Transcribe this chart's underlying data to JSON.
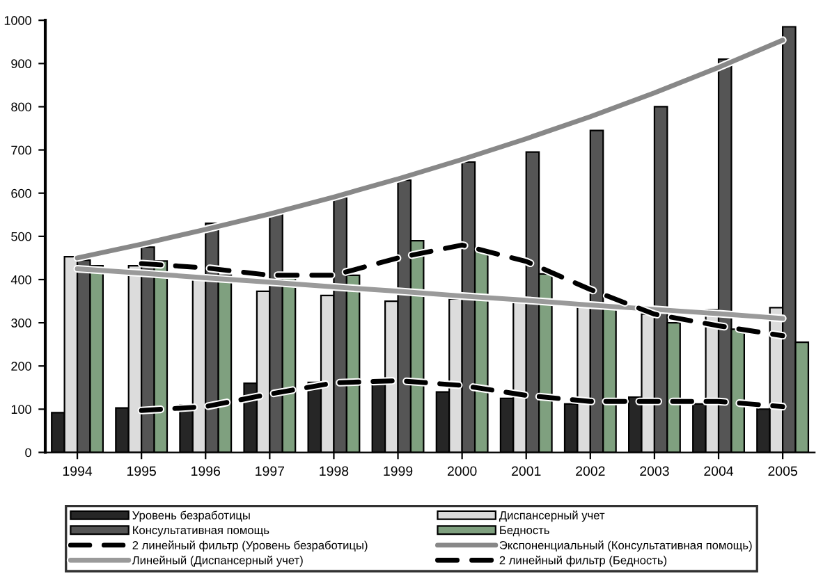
{
  "chart_data": {
    "type": "bar",
    "categories": [
      "1994",
      "1995",
      "1996",
      "1997",
      "1998",
      "1999",
      "2000",
      "2001",
      "2002",
      "2003",
      "2004",
      "2005"
    ],
    "ylim": [
      0,
      1000
    ],
    "yticks": [
      0,
      100,
      200,
      300,
      400,
      500,
      600,
      700,
      800,
      900,
      1000
    ],
    "grid": false,
    "legend": "bottom",
    "marker": "none",
    "series": [
      {
        "name": "Уровень безработицы",
        "color": "#262626",
        "values": [
          92,
          103,
          110,
          160,
          162,
          170,
          140,
          125,
          112,
          128,
          112,
          100
        ]
      },
      {
        "name": "Диспансерный учет",
        "color": "#dcdcdc",
        "values": [
          453,
          432,
          408,
          373,
          363,
          350,
          355,
          347,
          337,
          320,
          330,
          335
        ]
      },
      {
        "name": "Консультативная помощь",
        "color": "#555555",
        "values": [
          445,
          475,
          530,
          558,
          590,
          630,
          672,
          695,
          745,
          800,
          910,
          985
        ]
      },
      {
        "name": "Бедность",
        "color": "#7fa07f",
        "values": [
          432,
          443,
          410,
          410,
          410,
          490,
          470,
          413,
          340,
          300,
          285,
          255
        ]
      },
      {
        "name": "2 линейный фильтр (Уровень безработицы)",
        "type": "line",
        "line_style": "dashed",
        "color": "#000000",
        "values": [
          null,
          97,
          106,
          135,
          161,
          166,
          155,
          132,
          118,
          118,
          118,
          106
        ]
      },
      {
        "name": "Экспоненциальный (Консультативная помощь)",
        "type": "line",
        "line_style": "solid",
        "color": "#888888",
        "values": [
          450,
          482,
          516,
          552,
          591,
          633,
          678,
          726,
          777,
          832,
          891,
          954
        ]
      },
      {
        "name": "Линейный (Диспансерный учет)",
        "type": "line",
        "line_style": "solid",
        "color": "#9a9a9a",
        "values": [
          425,
          415,
          404,
          394,
          383,
          373,
          362,
          352,
          341,
          331,
          321,
          310
        ]
      },
      {
        "name": "2 линейный фильтр (Бедность)",
        "type": "line",
        "line_style": "dashed",
        "color": "#000000",
        "values": [
          null,
          437,
          427,
          410,
          410,
          450,
          480,
          442,
          377,
          320,
          293,
          270
        ]
      }
    ]
  }
}
